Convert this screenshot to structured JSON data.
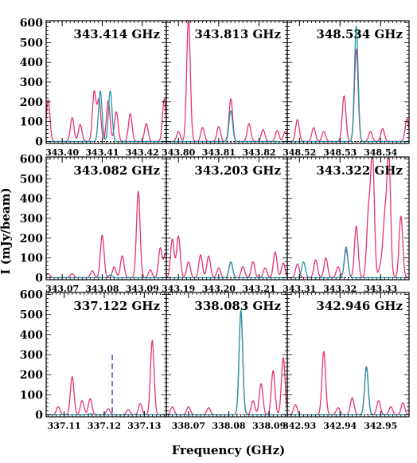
{
  "figure": {
    "xlabel": "Frequency (GHz)",
    "ylabel": "I (mJy/beam)"
  },
  "chart_data": [
    {
      "type": "line",
      "title": "343.414 GHz",
      "xticks": [
        "343.40",
        "343.41",
        "343.42"
      ],
      "xlim": [
        343.396,
        343.426
      ],
      "ylim": [
        -10,
        610
      ],
      "yticks": [
        "0",
        "100",
        "200",
        "300",
        "400",
        "500",
        "600"
      ],
      "series": [
        {
          "color": "#e6337a",
          "peaks": [
            [
              343.3965,
              210
            ],
            [
              343.4025,
              120
            ],
            [
              343.4045,
              85
            ],
            [
              343.408,
              250
            ],
            [
              343.4092,
              210
            ],
            [
              343.4115,
              205
            ],
            [
              343.4135,
              150
            ],
            [
              343.417,
              140
            ],
            [
              343.421,
              90
            ],
            [
              343.4255,
              215
            ]
          ]
        },
        {
          "color": "#1f9aa8",
          "peaks": [
            [
              343.4095,
              255
            ],
            [
              343.412,
              255
            ]
          ]
        }
      ]
    },
    {
      "type": "line",
      "title": "343.813 GHz",
      "xticks": [
        "343.80",
        "343.81",
        "343.82"
      ],
      "xlim": [
        343.797,
        343.827
      ],
      "ylim": [
        -10,
        610
      ],
      "series": [
        {
          "color": "#e6337a",
          "peaks": [
            [
              343.8,
              50
            ],
            [
              343.8025,
              620
            ],
            [
              343.806,
              70
            ],
            [
              343.81,
              75
            ],
            [
              343.813,
              215
            ],
            [
              343.8175,
              90
            ],
            [
              343.821,
              60
            ],
            [
              343.8245,
              55
            ],
            [
              343.8265,
              50
            ]
          ]
        },
        {
          "color": "#1f9aa8",
          "peaks": [
            [
              343.813,
              155
            ]
          ]
        }
      ]
    },
    {
      "type": "line",
      "title": "348.534 GHz",
      "xticks": [
        "348.52",
        "348.53",
        "348.54"
      ],
      "xlim": [
        348.517,
        348.547
      ],
      "ylim": [
        -10,
        610
      ],
      "series": [
        {
          "color": "#e6337a",
          "peaks": [
            [
              348.5195,
              110
            ],
            [
              348.5235,
              70
            ],
            [
              348.526,
              50
            ],
            [
              348.531,
              230
            ],
            [
              348.534,
              465
            ],
            [
              348.5375,
              50
            ],
            [
              348.5405,
              65
            ],
            [
              348.5465,
              115
            ]
          ]
        },
        {
          "color": "#1f9aa8",
          "peaks": [
            [
              348.534,
              580
            ]
          ]
        }
      ]
    },
    {
      "type": "line",
      "title": "343.082 GHz",
      "xticks": [
        "343.07",
        "343.08",
        "343.09"
      ],
      "xlim": [
        343.066,
        343.096
      ],
      "ylim": [
        -10,
        610
      ],
      "series": [
        {
          "color": "#e6337a",
          "peaks": [
            [
              343.0665,
              20
            ],
            [
              343.0725,
              20
            ],
            [
              343.0775,
              35
            ],
            [
              343.08,
              215
            ],
            [
              343.083,
              55
            ],
            [
              343.085,
              110
            ],
            [
              343.089,
              435
            ],
            [
              343.092,
              40
            ],
            [
              343.0945,
              150
            ],
            [
              343.0958,
              120
            ]
          ]
        },
        {
          "color": "#1f9aa8",
          "peaks": [
            [
              343.082,
              15
            ]
          ]
        }
      ]
    },
    {
      "type": "line",
      "title": "343.203 GHz",
      "xticks": [
        "343.19",
        "343.20",
        "343.21"
      ],
      "xlim": [
        343.187,
        343.217
      ],
      "ylim": [
        -10,
        610
      ],
      "series": [
        {
          "color": "#e6337a",
          "peaks": [
            [
              343.1885,
              195
            ],
            [
              343.19,
              210
            ],
            [
              343.1925,
              80
            ],
            [
              343.1955,
              115
            ],
            [
              343.1975,
              110
            ],
            [
              343.2,
              50
            ],
            [
              343.203,
              80
            ],
            [
              343.206,
              55
            ],
            [
              343.2085,
              80
            ],
            [
              343.2115,
              50
            ],
            [
              343.214,
              130
            ],
            [
              343.216,
              75
            ]
          ]
        },
        {
          "color": "#1f9aa8",
          "peaks": [
            [
              343.203,
              80
            ]
          ]
        }
      ]
    },
    {
      "type": "line",
      "title": "343.322 GHz",
      "xticks": [
        "343.31",
        "343.32",
        "343.33"
      ],
      "xlim": [
        343.307,
        343.337
      ],
      "ylim": [
        -10,
        610
      ],
      "series": [
        {
          "color": "#e6337a",
          "peaks": [
            [
              343.3095,
              70
            ],
            [
              343.314,
              90
            ],
            [
              343.3165,
              100
            ],
            [
              343.3195,
              55
            ],
            [
              343.3215,
              140
            ],
            [
              343.324,
              260
            ],
            [
              343.327,
              315
            ],
            [
              343.328,
              620
            ],
            [
              343.33,
              60
            ],
            [
              343.331,
              280
            ],
            [
              343.332,
              620
            ],
            [
              343.335,
              310
            ]
          ]
        },
        {
          "color": "#1f9aa8",
          "peaks": [
            [
              343.311,
              80
            ],
            [
              343.3215,
              155
            ]
          ]
        }
      ]
    },
    {
      "type": "line",
      "title": "337.122 GHz",
      "xticks": [
        "337.11",
        "337.12",
        "337.13"
      ],
      "xlim": [
        337.1055,
        337.1355
      ],
      "ylim": [
        -10,
        610
      ],
      "marker_x": 337.122,
      "series": [
        {
          "color": "#e6337a",
          "peaks": [
            [
              337.1085,
              40
            ],
            [
              337.112,
              190
            ],
            [
              337.1145,
              70
            ],
            [
              337.1165,
              80
            ],
            [
              337.121,
              30
            ],
            [
              337.126,
              25
            ],
            [
              337.129,
              55
            ],
            [
              337.132,
              370
            ]
          ]
        },
        {
          "color": "#1f9aa8",
          "peaks": [
            [
              337.1165,
              5
            ]
          ]
        }
      ]
    },
    {
      "type": "line",
      "title": "338.083 GHz",
      "xticks": [
        "338.07",
        "338.08",
        "338.09"
      ],
      "xlim": [
        338.0645,
        338.0945
      ],
      "ylim": [
        -10,
        610
      ],
      "series": [
        {
          "color": "#e6337a",
          "peaks": [
            [
              338.066,
              40
            ],
            [
              338.07,
              40
            ],
            [
              338.075,
              35
            ],
            [
              338.083,
              510
            ],
            [
              338.086,
              70
            ],
            [
              338.088,
              155
            ],
            [
              338.091,
              220
            ],
            [
              338.0935,
              285
            ]
          ]
        },
        {
          "color": "#1f9aa8",
          "peaks": [
            [
              338.083,
              520
            ]
          ]
        }
      ]
    },
    {
      "type": "line",
      "title": "342.946 GHz",
      "xticks": [
        "342.93",
        "342.94",
        "342.95"
      ],
      "xlim": [
        342.927,
        342.957
      ],
      "ylim": [
        -10,
        610
      ],
      "series": [
        {
          "color": "#e6337a",
          "peaks": [
            [
              342.929,
              50
            ],
            [
              342.936,
              315
            ],
            [
              342.9395,
              35
            ],
            [
              342.943,
              85
            ],
            [
              342.9465,
              240
            ],
            [
              342.9495,
              70
            ],
            [
              342.9525,
              40
            ],
            [
              342.9555,
              60
            ]
          ]
        },
        {
          "color": "#1f9aa8",
          "peaks": [
            [
              342.9465,
              235
            ]
          ]
        }
      ]
    }
  ]
}
